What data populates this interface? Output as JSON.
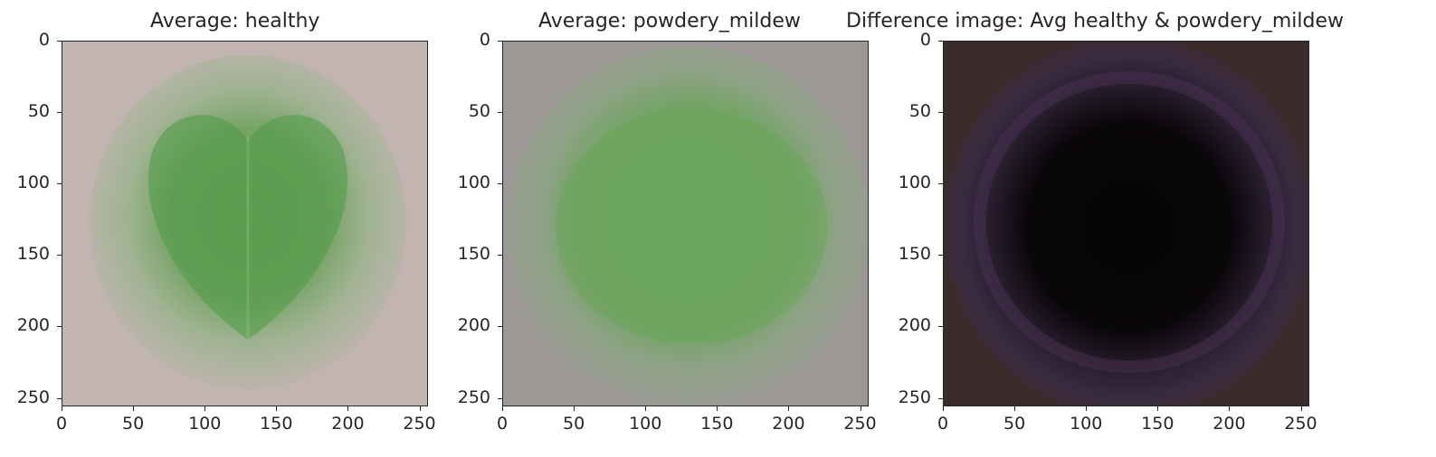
{
  "chart_data": [
    {
      "type": "heatmap",
      "title": "Average: healthy",
      "xlabel": "",
      "ylabel": "",
      "xlim": [
        0,
        256
      ],
      "ylim": [
        256,
        0
      ],
      "x_ticks": [
        "0",
        "50",
        "100",
        "150",
        "200",
        "250"
      ],
      "y_ticks": [
        "0",
        "50",
        "100",
        "150",
        "200",
        "250"
      ],
      "background_color": "#c2b4b1",
      "foreground_color": "#5a9a4c",
      "description_shape": "heart-shaped green leaf blob"
    },
    {
      "type": "heatmap",
      "title": "Average: powdery_mildew",
      "xlabel": "",
      "ylabel": "",
      "xlim": [
        0,
        256
      ],
      "ylim": [
        256,
        0
      ],
      "x_ticks": [
        "0",
        "50",
        "100",
        "150",
        "200",
        "250"
      ],
      "y_ticks": [
        "0",
        "50",
        "100",
        "150",
        "200",
        "250"
      ],
      "background_color": "#9c9895",
      "foreground_color": "#6aa65a",
      "description_shape": "round green leaf blob"
    },
    {
      "type": "heatmap",
      "title": "Difference image: Avg healthy & powdery_mildew",
      "xlabel": "",
      "ylabel": "",
      "xlim": [
        0,
        256
      ],
      "ylim": [
        256,
        0
      ],
      "x_ticks": [
        "0",
        "50",
        "100",
        "150",
        "200",
        "250"
      ],
      "y_ticks": [
        "0",
        "50",
        "100",
        "150",
        "200",
        "250"
      ],
      "background_color": "#3a2c2a",
      "foreground_color": "#050305",
      "description_shape": "dark circle with purple rim"
    }
  ]
}
